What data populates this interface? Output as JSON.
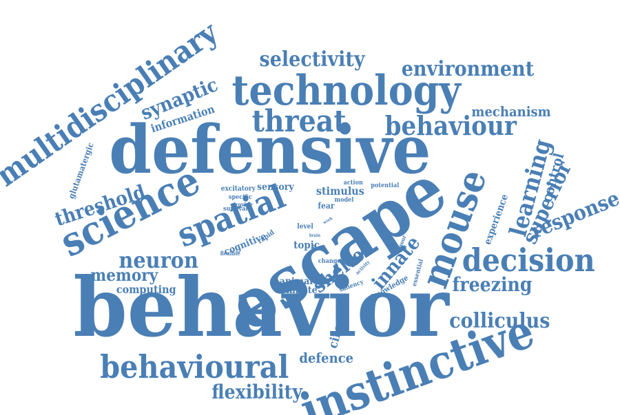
{
  "colors": {
    "word": "#4a7fb5",
    "background": "#ffffff"
  },
  "words": [
    {
      "id": "behavior",
      "text": "behavior"
    },
    {
      "id": "escape",
      "text": "escape"
    },
    {
      "id": "defensive",
      "text": "defensive"
    },
    {
      "id": "technology",
      "text": "technology"
    },
    {
      "id": "instinctive",
      "text": "instinctive"
    },
    {
      "id": "multidisciplinary",
      "text": "multidisciplinary"
    },
    {
      "id": "science",
      "text": "science"
    },
    {
      "id": "spatial",
      "text": "spatial"
    },
    {
      "id": "mouse",
      "text": "mouse"
    },
    {
      "id": "behavioural",
      "text": "behavioural"
    },
    {
      "id": "decision",
      "text": "decision"
    },
    {
      "id": "threat",
      "text": "threat"
    },
    {
      "id": "behaviour",
      "text": "behaviour"
    },
    {
      "id": "environment",
      "text": "environment"
    },
    {
      "id": "selectivity",
      "text": "selectivity"
    },
    {
      "id": "neuron",
      "text": "neuron"
    },
    {
      "id": "learning",
      "text": "learning"
    },
    {
      "id": "colliculus",
      "text": "colliculus"
    },
    {
      "id": "response",
      "text": "response"
    },
    {
      "id": "freezing",
      "text": "freezing"
    },
    {
      "id": "superior",
      "text": "superior"
    },
    {
      "id": "synaptic",
      "text": "synaptic"
    },
    {
      "id": "threshold",
      "text": "threshold"
    },
    {
      "id": "flexibility",
      "text": "flexibility"
    },
    {
      "id": "shelter",
      "text": "shelter"
    },
    {
      "id": "innate",
      "text": "innate"
    },
    {
      "id": "memory",
      "text": "memory"
    },
    {
      "id": "mechanism",
      "text": "mechanism"
    },
    {
      "id": "control",
      "text": "control"
    },
    {
      "id": "defence",
      "text": "defence"
    },
    {
      "id": "information",
      "text": "information"
    },
    {
      "id": "circuit",
      "text": "circuit"
    },
    {
      "id": "computing",
      "text": "computing"
    },
    {
      "id": "experience",
      "text": "experience"
    },
    {
      "id": "glutamatergic",
      "text": "glutamatergic"
    },
    {
      "id": "stimulus",
      "text": "stimulus"
    },
    {
      "id": "sensory",
      "text": "sensory"
    },
    {
      "id": "cognitive",
      "text": "cognitive"
    },
    {
      "id": "topic",
      "text": "topic"
    },
    {
      "id": "animal",
      "text": "animal"
    },
    {
      "id": "compute",
      "text": "compute"
    },
    {
      "id": "knowledge",
      "text": "knowledge"
    },
    {
      "id": "fear",
      "text": "fear"
    },
    {
      "id": "excitatory",
      "text": "excitatory"
    },
    {
      "id": "specific",
      "text": "specific"
    },
    {
      "id": "provide",
      "text": "provide"
    },
    {
      "id": "survival",
      "text": "survival"
    },
    {
      "id": "model",
      "text": "model"
    },
    {
      "id": "action",
      "text": "action"
    },
    {
      "id": "potential",
      "text": "potential"
    },
    {
      "id": "rapid",
      "text": "rapid"
    },
    {
      "id": "level",
      "text": "level"
    },
    {
      "id": "flexible",
      "text": "flexible"
    },
    {
      "id": "change",
      "text": "change"
    },
    {
      "id": "saliency",
      "text": "saliency"
    },
    {
      "id": "essential",
      "text": "essential"
    },
    {
      "id": "activity",
      "text": "activity"
    },
    {
      "id": "vigour",
      "text": "vigour"
    },
    {
      "id": "recent",
      "text": "recent"
    },
    {
      "id": "brain",
      "text": "brain"
    },
    {
      "id": "work",
      "text": "work"
    }
  ]
}
